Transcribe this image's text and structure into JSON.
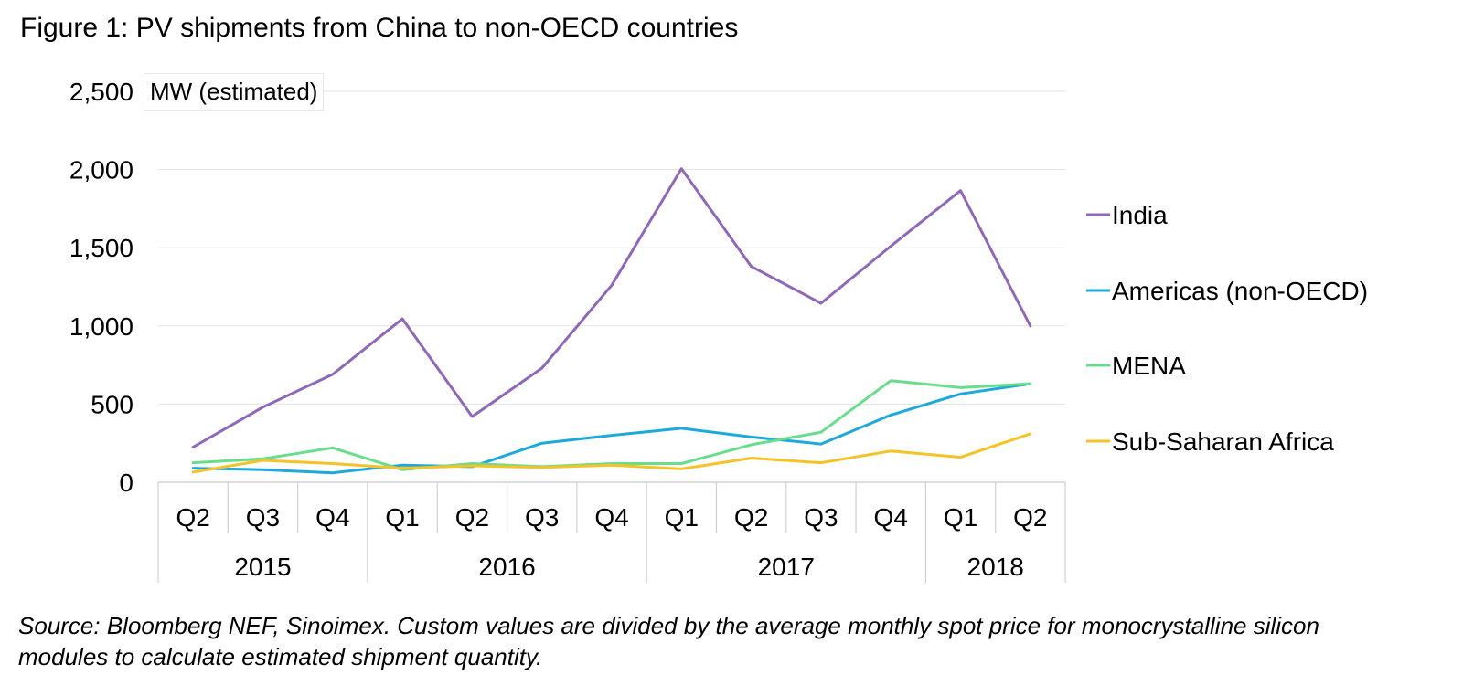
{
  "figure_title": "Figure 1: PV shipments from China to non-OECD countries",
  "source_note": "Source: Bloomberg NEF, Sinoimex. Custom values are divided by the average monthly spot price for monocrystalline silicon modules to calculate estimated shipment quantity.",
  "chart_data": {
    "type": "line",
    "title": "Figure 1: PV shipments from China to non-OECD countries",
    "ylabel": "MW (estimated)",
    "xlabel": "",
    "ylim": [
      0,
      2500
    ],
    "yticks": [
      0,
      500,
      1000,
      1500,
      2000,
      2500
    ],
    "ytick_labels": [
      "0",
      "500",
      "1,000",
      "1,500",
      "2,000",
      "2,500"
    ],
    "grid": true,
    "legend_position": "right",
    "categories": [
      "Q2",
      "Q3",
      "Q4",
      "Q1",
      "Q2",
      "Q3",
      "Q4",
      "Q1",
      "Q2",
      "Q3",
      "Q4",
      "Q1",
      "Q2"
    ],
    "year_groups": [
      {
        "label": "2015",
        "quarters": 3
      },
      {
        "label": "2016",
        "quarters": 4
      },
      {
        "label": "2017",
        "quarters": 4
      },
      {
        "label": "2018",
        "quarters": 2
      }
    ],
    "series": [
      {
        "name": "India",
        "color": "#8f68b8",
        "values": [
          225,
          480,
          690,
          1045,
          420,
          730,
          1260,
          2005,
          1380,
          1145,
          1510,
          1865,
          1000
        ]
      },
      {
        "name": "Americas (non-OECD)",
        "color": "#1ea9dc",
        "values": [
          90,
          80,
          60,
          110,
          100,
          250,
          300,
          345,
          290,
          245,
          430,
          565,
          630
        ]
      },
      {
        "name": "MENA",
        "color": "#68dd8c",
        "values": [
          125,
          150,
          220,
          80,
          120,
          100,
          120,
          120,
          240,
          320,
          650,
          605,
          630
        ]
      },
      {
        "name": "Sub-Saharan Africa",
        "color": "#f5c327",
        "values": [
          65,
          140,
          120,
          90,
          105,
          95,
          110,
          85,
          155,
          125,
          200,
          160,
          310
        ]
      }
    ]
  }
}
